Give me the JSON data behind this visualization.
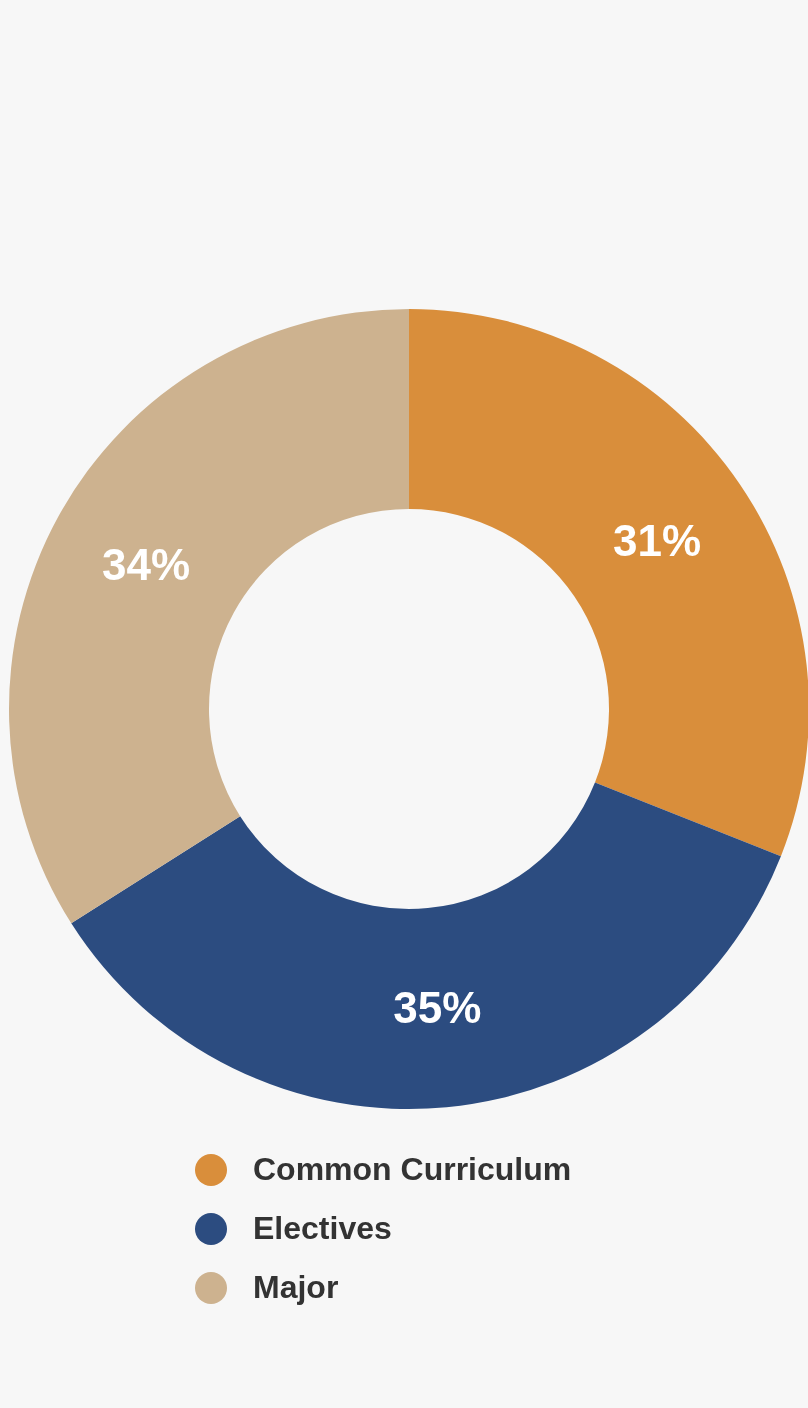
{
  "chart_data": {
    "type": "donut",
    "categories": [
      "Common Curriculum",
      "Electives",
      "Major"
    ],
    "values": [
      31,
      35,
      34
    ],
    "colors": [
      "#d98e3b",
      "#2c4c80",
      "#cdb28f"
    ],
    "value_labels": [
      "31%",
      "35%",
      "34%"
    ],
    "legend": "bottom"
  }
}
